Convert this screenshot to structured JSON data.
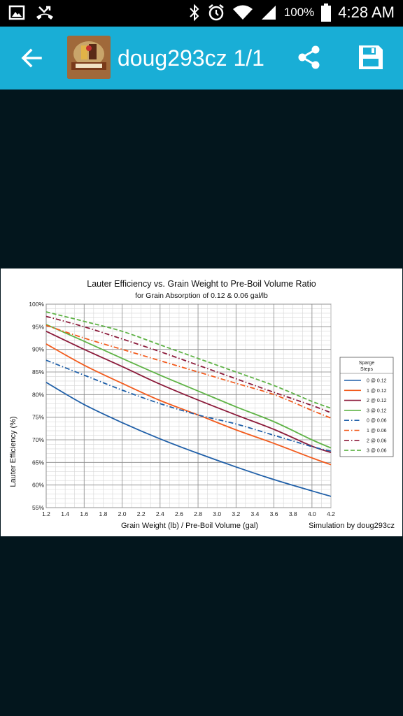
{
  "status_bar": {
    "battery": "100%",
    "time": "4:28 AM",
    "icons": [
      "image-icon",
      "missed-call-icon",
      "bluetooth-icon",
      "alarm-icon",
      "wifi-icon",
      "signal-icon",
      "battery-icon"
    ]
  },
  "app_bar": {
    "title": "doug293cz 1/1",
    "logo_icon": "homebrewtalk-logo",
    "actions": [
      "back-arrow-icon",
      "share-icon",
      "save-icon"
    ],
    "color": "#19aed6"
  },
  "viewer": {
    "background": "#03161d"
  },
  "chart_data": {
    "type": "line",
    "title": "Lauter Efficiency vs. Grain Weight to Pre-Boil Volume Ratio",
    "subtitle": "for Grain Absorption of 0.12 & 0.06 gal/lb",
    "xlabel": "Grain Weight (lb) / Pre-Boil Volume (gal)",
    "ylabel": "Lauter Efficiency (%)",
    "annotation": "Simulation by doug293cz",
    "xlim": [
      1.2,
      4.2
    ],
    "ylim": [
      55,
      100
    ],
    "x_ticks": [
      "1.2",
      "1.4",
      "1.6",
      "1.8",
      "2.0",
      "2.2",
      "2.4",
      "2.6",
      "2.8",
      "3.0",
      "3.2",
      "3.4",
      "3.6",
      "3.8",
      "4.0",
      "4.2"
    ],
    "y_ticks": [
      "55%",
      "60%",
      "65%",
      "70%",
      "75%",
      "80%",
      "85%",
      "90%",
      "95%",
      "100%"
    ],
    "grid": true,
    "legend_title_lines": [
      "Sparge",
      "Steps"
    ],
    "legend_position": "right",
    "x": [
      1.2,
      1.6,
      2.0,
      2.4,
      2.8,
      3.2,
      3.6,
      4.0,
      4.2
    ],
    "series": [
      {
        "name": "0 @ 0.12",
        "color": "#1f5fa8",
        "dash": "solid",
        "values": [
          82.7,
          77.8,
          73.8,
          70.2,
          67.0,
          64.0,
          61.2,
          58.7,
          57.5
        ]
      },
      {
        "name": "1 @ 0.12",
        "color": "#f25b1d",
        "dash": "solid",
        "values": [
          91.2,
          86.5,
          82.5,
          78.7,
          75.5,
          72.2,
          69.2,
          66.0,
          64.5
        ]
      },
      {
        "name": "2 @ 0.12",
        "color": "#8b1a3a",
        "dash": "solid",
        "values": [
          94.0,
          90.0,
          86.2,
          82.3,
          78.8,
          75.5,
          72.3,
          68.6,
          67.2
        ]
      },
      {
        "name": "3 @ 0.12",
        "color": "#5fb346",
        "dash": "solid",
        "values": [
          95.5,
          91.8,
          88.0,
          84.3,
          80.8,
          77.3,
          74.0,
          70.0,
          68.2
        ]
      },
      {
        "name": "0 @ 0.06",
        "color": "#1f5fa8",
        "dash": "dashdot",
        "values": [
          87.6,
          84.3,
          81.0,
          78.0,
          75.5,
          73.5,
          71.0,
          68.5,
          67.5
        ]
      },
      {
        "name": "1 @ 0.06",
        "color": "#f25b1d",
        "dash": "dashdot",
        "values": [
          95.3,
          92.5,
          90.0,
          87.5,
          85.0,
          82.5,
          80.0,
          76.5,
          74.8
        ]
      },
      {
        "name": "2 @ 0.06",
        "color": "#8b1a3a",
        "dash": "dashdot",
        "values": [
          97.3,
          95.0,
          92.3,
          89.5,
          86.5,
          83.5,
          80.5,
          77.6,
          76.0
        ]
      },
      {
        "name": "3 @ 0.06",
        "color": "#5fb346",
        "dash": "dash",
        "values": [
          98.3,
          96.2,
          94.0,
          91.0,
          88.0,
          85.0,
          82.0,
          78.5,
          77.0
        ]
      }
    ]
  }
}
